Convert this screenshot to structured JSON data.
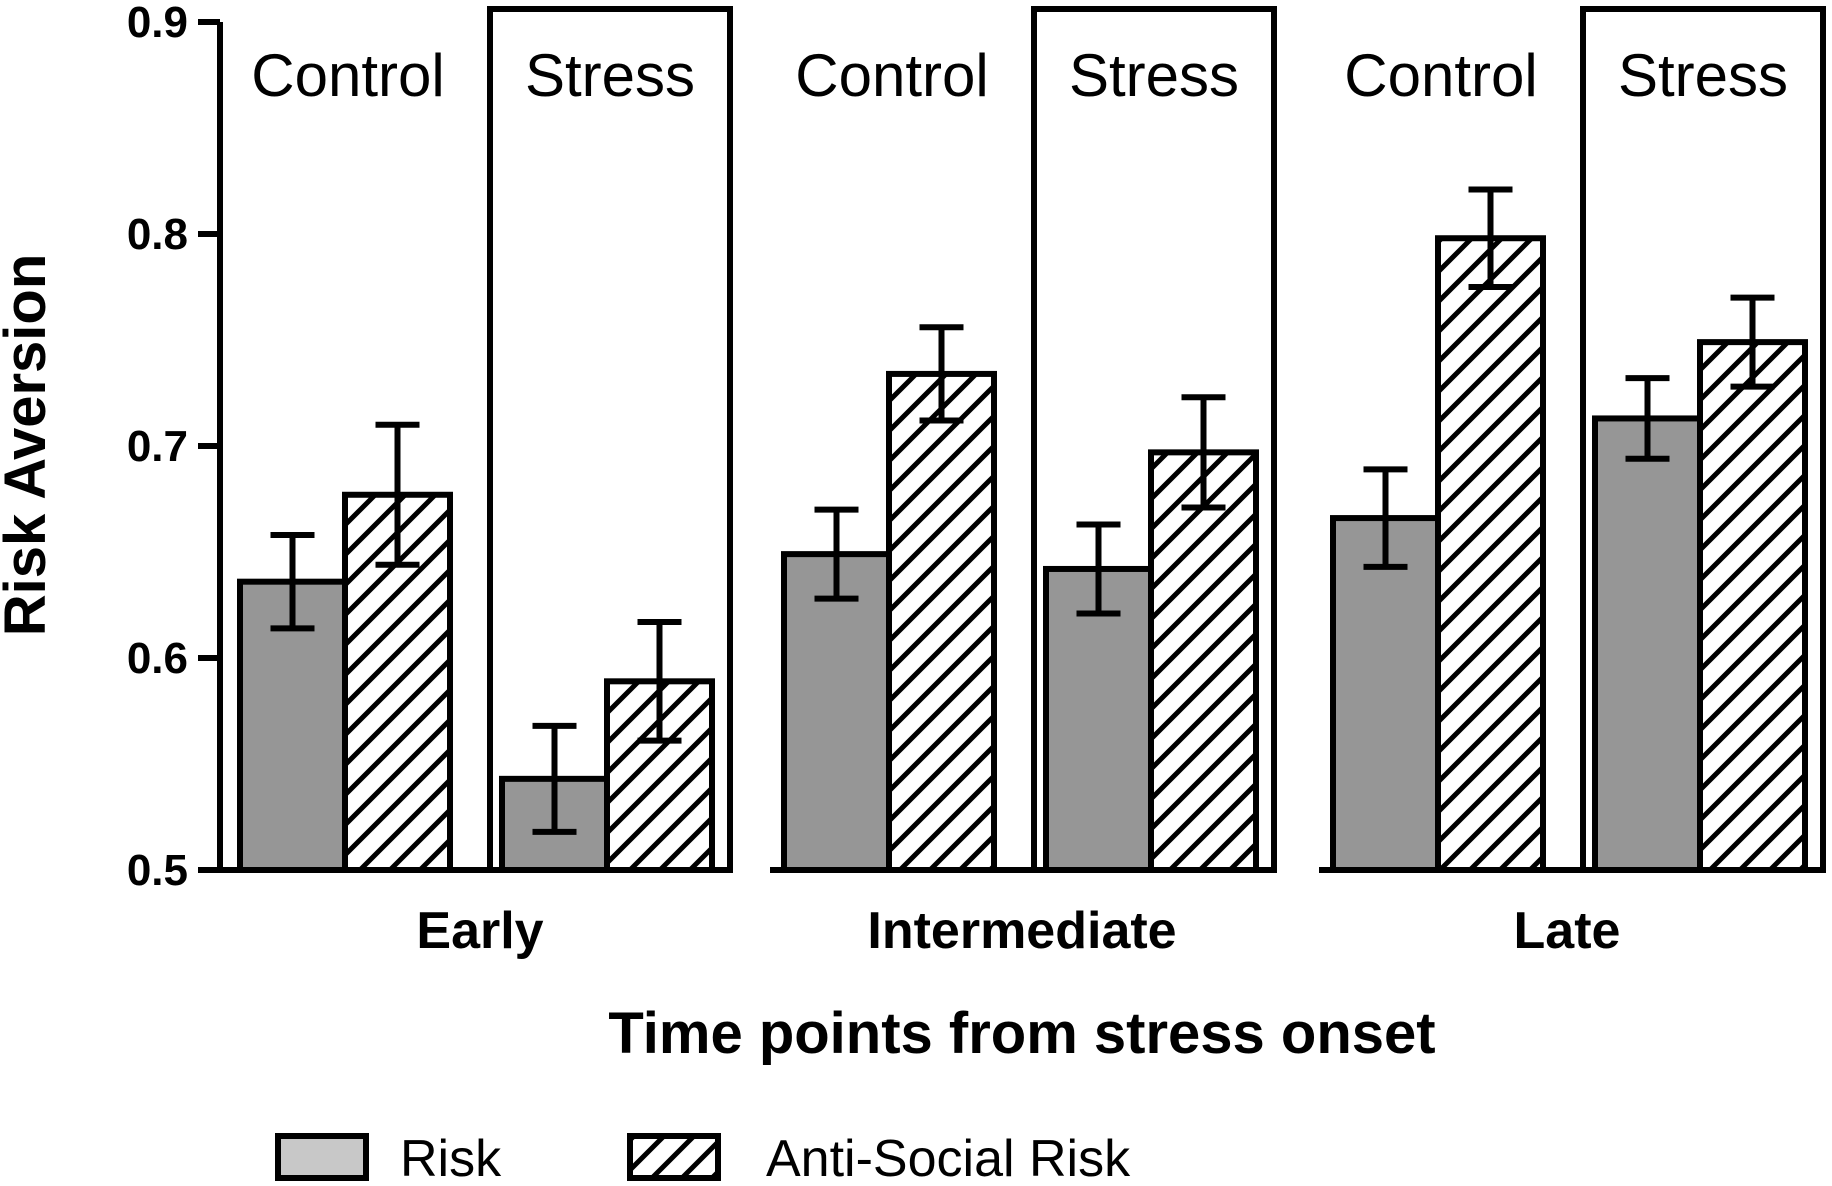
{
  "chart_data": {
    "type": "bar",
    "ylabel": "Risk Aversion",
    "xlabel": "Time points from stress onset",
    "ylim": [
      0.5,
      0.9
    ],
    "yticks": [
      "0.5",
      "0.6",
      "0.7",
      "0.8",
      "0.9"
    ],
    "groups": [
      "Early",
      "Intermediate",
      "Late"
    ],
    "conditions": [
      "Control",
      "Stress"
    ],
    "series": [
      {
        "name": "Risk",
        "color": "#969696",
        "pattern": "solid",
        "values": [
          [
            0.636,
            0.543
          ],
          [
            0.649,
            0.642
          ],
          [
            0.666,
            0.713
          ]
        ],
        "errors": [
          [
            0.022,
            0.025
          ],
          [
            0.021,
            0.021
          ],
          [
            0.023,
            0.019
          ]
        ]
      },
      {
        "name": "Anti-Social Risk",
        "color": "#ffffff",
        "pattern": "hatch",
        "values": [
          [
            0.677,
            0.589
          ],
          [
            0.734,
            0.697
          ],
          [
            0.798,
            0.749
          ]
        ],
        "errors": [
          [
            0.033,
            0.028
          ],
          [
            0.022,
            0.026
          ],
          [
            0.023,
            0.021
          ]
        ]
      }
    ],
    "legend_position": "bottom",
    "grid": false
  }
}
